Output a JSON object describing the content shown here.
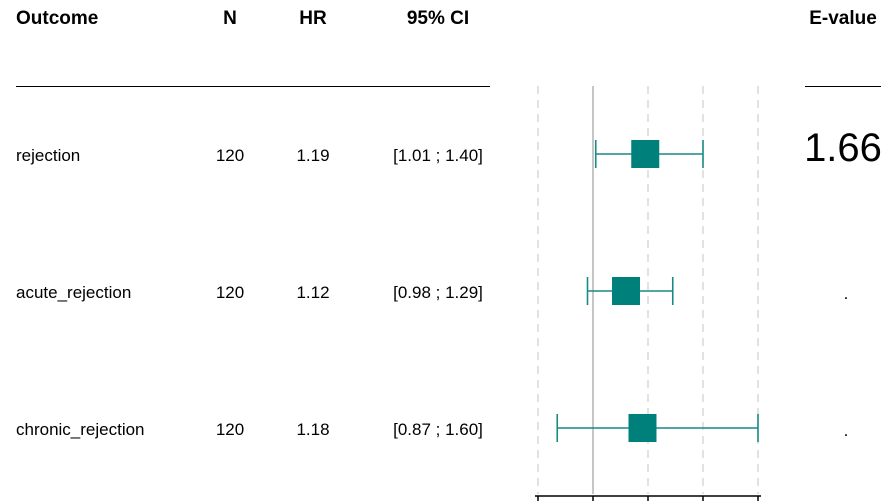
{
  "headers": {
    "outcome": "Outcome",
    "n": "N",
    "hr": "HR",
    "ci": "95% CI",
    "evalue": "E-value"
  },
  "rows": [
    {
      "outcome": "rejection",
      "n": "120",
      "hr": "1.19",
      "ci": "[1.01 ; 1.40]",
      "evalue": "1.66"
    },
    {
      "outcome": "acute_rejection",
      "n": "120",
      "hr": "1.12",
      "ci": "[0.98 ; 1.29]",
      "evalue": "."
    },
    {
      "outcome": "chronic_rejection",
      "n": "120",
      "hr": "1.18",
      "ci": "[0.87 ; 1.60]",
      "evalue": "."
    }
  ],
  "chart_data": {
    "type": "forest",
    "reference_line": 1.0,
    "x_range": [
      0.8,
      1.6
    ],
    "dashed_gridlines": [
      0.8,
      1.2,
      1.4,
      1.6
    ],
    "points": [
      {
        "outcome": "rejection",
        "estimate": 1.19,
        "lower": 1.01,
        "upper": 1.4
      },
      {
        "outcome": "acute_rejection",
        "estimate": 1.12,
        "lower": 0.98,
        "upper": 1.29
      },
      {
        "outcome": "chronic_rejection",
        "estimate": 1.18,
        "lower": 0.87,
        "upper": 1.6
      }
    ],
    "colors": {
      "marker": "#00807a",
      "ci_line": "#1a8a84",
      "gridline": "#d2d2d2",
      "refline": "#b4b4b4"
    }
  }
}
